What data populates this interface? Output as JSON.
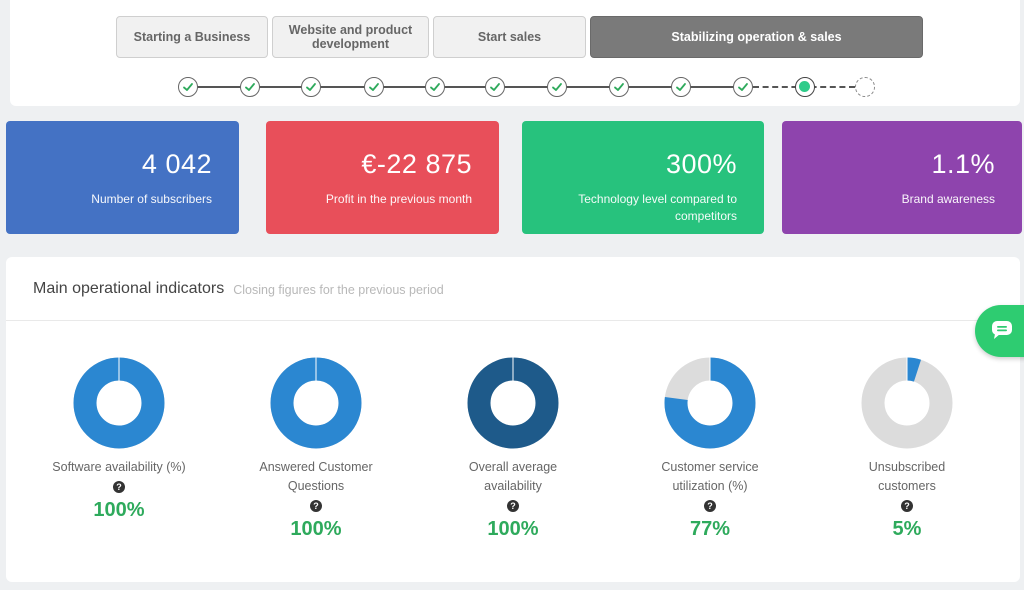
{
  "stages": [
    {
      "label": "Starting a Business",
      "active": false
    },
    {
      "label": "Website and product development",
      "active": false
    },
    {
      "label": "Start sales",
      "active": false
    },
    {
      "label": "Stabilizing operation & sales",
      "active": true
    }
  ],
  "progress": {
    "completed_steps": 10,
    "current_step": 11,
    "total_steps": 12
  },
  "kpis": [
    {
      "value": "4 042",
      "label": "Number of subscribers",
      "color": "#4472c4"
    },
    {
      "value": "€-22 875",
      "label": "Profit in the previous month",
      "color": "#e84f5a"
    },
    {
      "value": "300%",
      "label": "Technology level compared to competitors",
      "color": "#27c27d"
    },
    {
      "value": "1.1%",
      "label": "Brand awareness",
      "color": "#8e44ad"
    }
  ],
  "panel": {
    "title": "Main operational indicators",
    "subtitle": "Closing figures for the previous period"
  },
  "indicators": [
    {
      "label": "Software availability (%)",
      "value": "100%",
      "fraction": 1.0,
      "color": "#2b87d1"
    },
    {
      "label": "Answered Customer Questions",
      "value": "100%",
      "fraction": 1.0,
      "color": "#2b87d1"
    },
    {
      "label": "Overall average availability",
      "value": "100%",
      "fraction": 1.0,
      "color": "#1e5a8a"
    },
    {
      "label": "Customer service utilization (%)",
      "value": "77%",
      "fraction": 0.77,
      "color": "#2b87d1"
    },
    {
      "label": "Unsubscribed customers",
      "value": "5%",
      "fraction": 0.05,
      "color": "#2b87d1"
    }
  ],
  "icons": {
    "help": "question-circle-icon",
    "chat": "chat-icon",
    "check": "check-icon"
  }
}
